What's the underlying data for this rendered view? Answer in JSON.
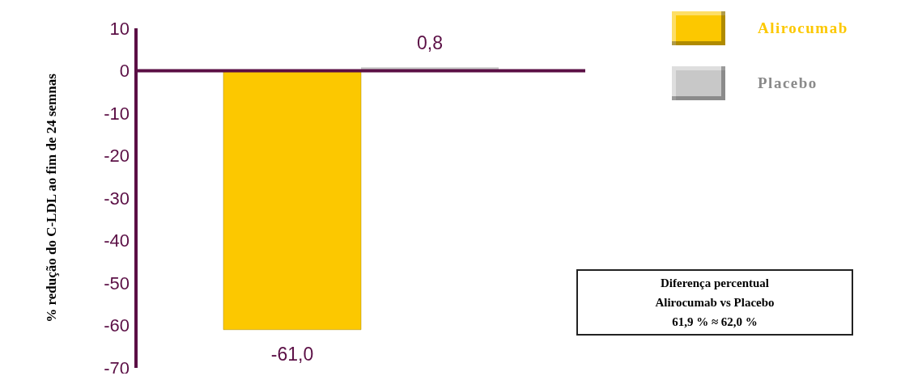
{
  "chart_data": {
    "type": "bar",
    "ylabel": "% redução do C-LDL  ao fim de 24 semnas",
    "categories": [
      null
    ],
    "series": [
      {
        "name": "Alirocumab",
        "color": "#fcc800",
        "values": [
          -61.0
        ],
        "value_labels": [
          "-61,0"
        ]
      },
      {
        "name": "Placebo",
        "color": "#c8c8c8",
        "values": [
          0.8
        ],
        "value_labels": [
          "0,8"
        ]
      }
    ],
    "ylim": [
      -70,
      10
    ],
    "yticks": [
      -70,
      -60,
      -50,
      -40,
      -30,
      -20,
      -10,
      0,
      10
    ],
    "grid": false,
    "legend": "top right",
    "annotations": [
      "Diferença percentual",
      "Alirocumab  vs Placebo",
      "61,9 % ≈ 62,0 %"
    ]
  }
}
